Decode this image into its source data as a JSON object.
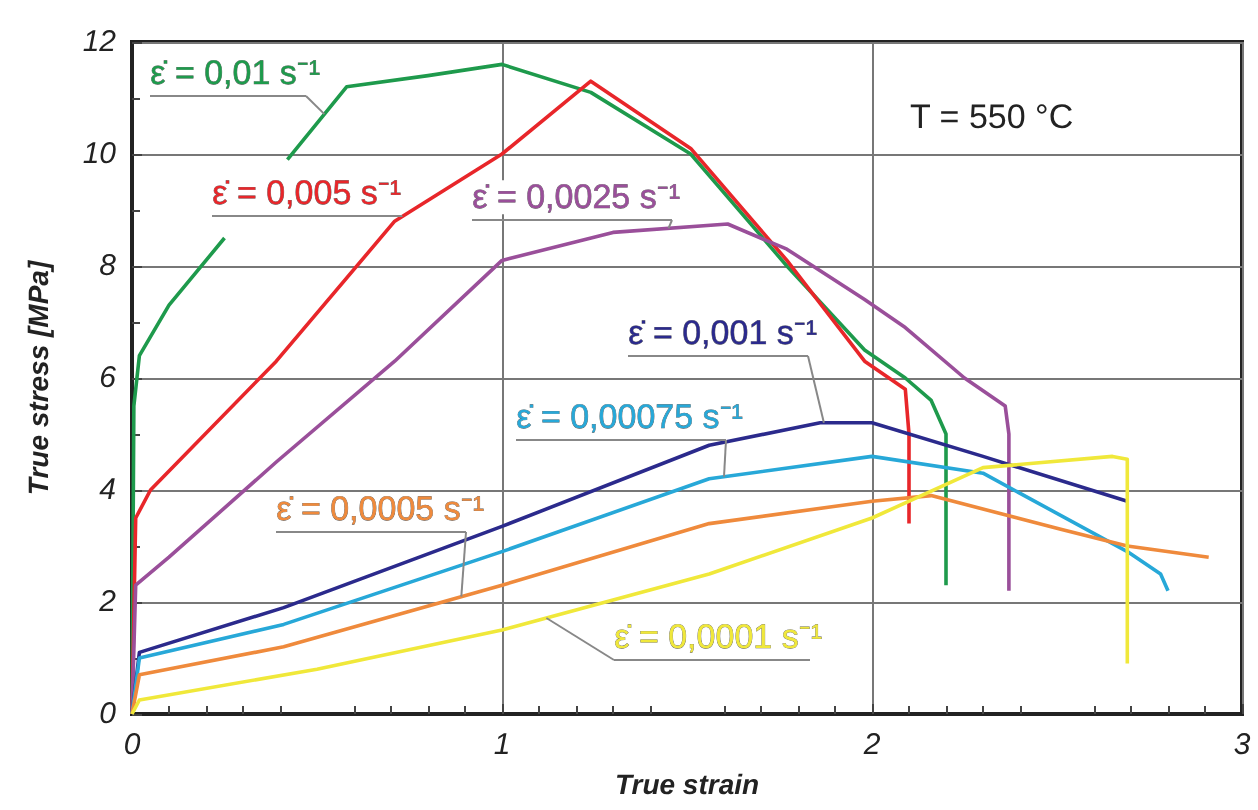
{
  "chart_data": {
    "type": "line",
    "xlabel": "True strain",
    "ylabel": "True stress [MPa]",
    "xlim": [
      0,
      3
    ],
    "ylim": [
      0,
      12
    ],
    "xticks": [
      0,
      1,
      2,
      3
    ],
    "yticks": [
      0,
      2,
      4,
      6,
      8,
      10,
      12
    ],
    "grid": true,
    "legend": false,
    "marker": "none",
    "line_style": "solid",
    "annotations": [
      "T = 550 °C"
    ],
    "series": [
      {
        "name": "ε̇ = 0,01 s⁻¹",
        "color": "#1e9a4c",
        "x": [
          0,
          0.005,
          0.02,
          0.1,
          0.25,
          null,
          0.42,
          0.58,
          0.8,
          1.0,
          1.24,
          1.51,
          1.77,
          1.98,
          2.09,
          2.16,
          2.2,
          2.2
        ],
        "values": [
          0,
          5.5,
          6.4,
          7.3,
          8.5,
          null,
          9.9,
          11.2,
          11.4,
          11.6,
          11.1,
          10.0,
          8.0,
          6.5,
          6.0,
          5.6,
          5.0,
          2.3
        ]
      },
      {
        "name": "ε̇ = 0,005 s⁻¹",
        "color": "#e8262a",
        "x": [
          0,
          0.01,
          0.05,
          0.39,
          0.71,
          1.0,
          1.24,
          1.51,
          1.77,
          1.98,
          2.09,
          2.1,
          2.1
        ],
        "values": [
          0,
          3.5,
          4.0,
          6.3,
          8.8,
          10.0,
          11.3,
          10.1,
          8.1,
          6.3,
          5.8,
          5.0,
          3.4
        ]
      },
      {
        "name": "ε̇ = 0,0025 s⁻¹",
        "color": "#9a4f9a",
        "x": [
          0,
          0.01,
          0.1,
          0.39,
          0.71,
          1.0,
          1.3,
          1.61,
          1.77,
          1.98,
          2.09,
          2.25,
          2.36,
          2.37,
          2.37
        ],
        "values": [
          0,
          2.3,
          2.8,
          4.5,
          6.3,
          8.1,
          8.6,
          8.75,
          8.3,
          7.4,
          6.9,
          6.0,
          5.5,
          5.0,
          2.2
        ]
      },
      {
        "name": "ε̇ = 0,001 s⁻¹",
        "color": "#2b2a8c",
        "x": [
          0,
          0.02,
          0.41,
          1.0,
          1.56,
          1.86,
          2.0,
          2.3,
          2.69
        ],
        "values": [
          0,
          1.1,
          1.9,
          3.35,
          4.8,
          5.2,
          5.2,
          4.6,
          3.8
        ]
      },
      {
        "name": "ε̇ = 0,00075 s⁻¹",
        "color": "#27a8d8",
        "x": [
          0,
          0.02,
          0.41,
          1.0,
          1.56,
          2.0,
          2.3,
          2.69,
          2.78,
          2.8
        ],
        "values": [
          0,
          1.0,
          1.6,
          2.9,
          4.2,
          4.6,
          4.3,
          2.9,
          2.5,
          2.2
        ]
      },
      {
        "name": "ε̇ = 0,0005 s⁻¹",
        "color": "#ef8a3c",
        "x": [
          0,
          0.02,
          0.41,
          1.0,
          1.56,
          2.0,
          2.16,
          2.51,
          2.69,
          2.91
        ],
        "values": [
          0,
          0.7,
          1.2,
          2.3,
          3.4,
          3.8,
          3.9,
          3.3,
          3.0,
          2.8
        ]
      },
      {
        "name": "ε̇ = 0,0001 s⁻¹",
        "color": "#f0e83a",
        "x": [
          0,
          0.02,
          0.5,
          1.0,
          1.56,
          2.0,
          2.3,
          2.65,
          2.69,
          2.69
        ],
        "values": [
          0,
          0.25,
          0.8,
          1.5,
          2.5,
          3.5,
          4.4,
          4.6,
          4.55,
          0.9
        ]
      }
    ]
  }
}
